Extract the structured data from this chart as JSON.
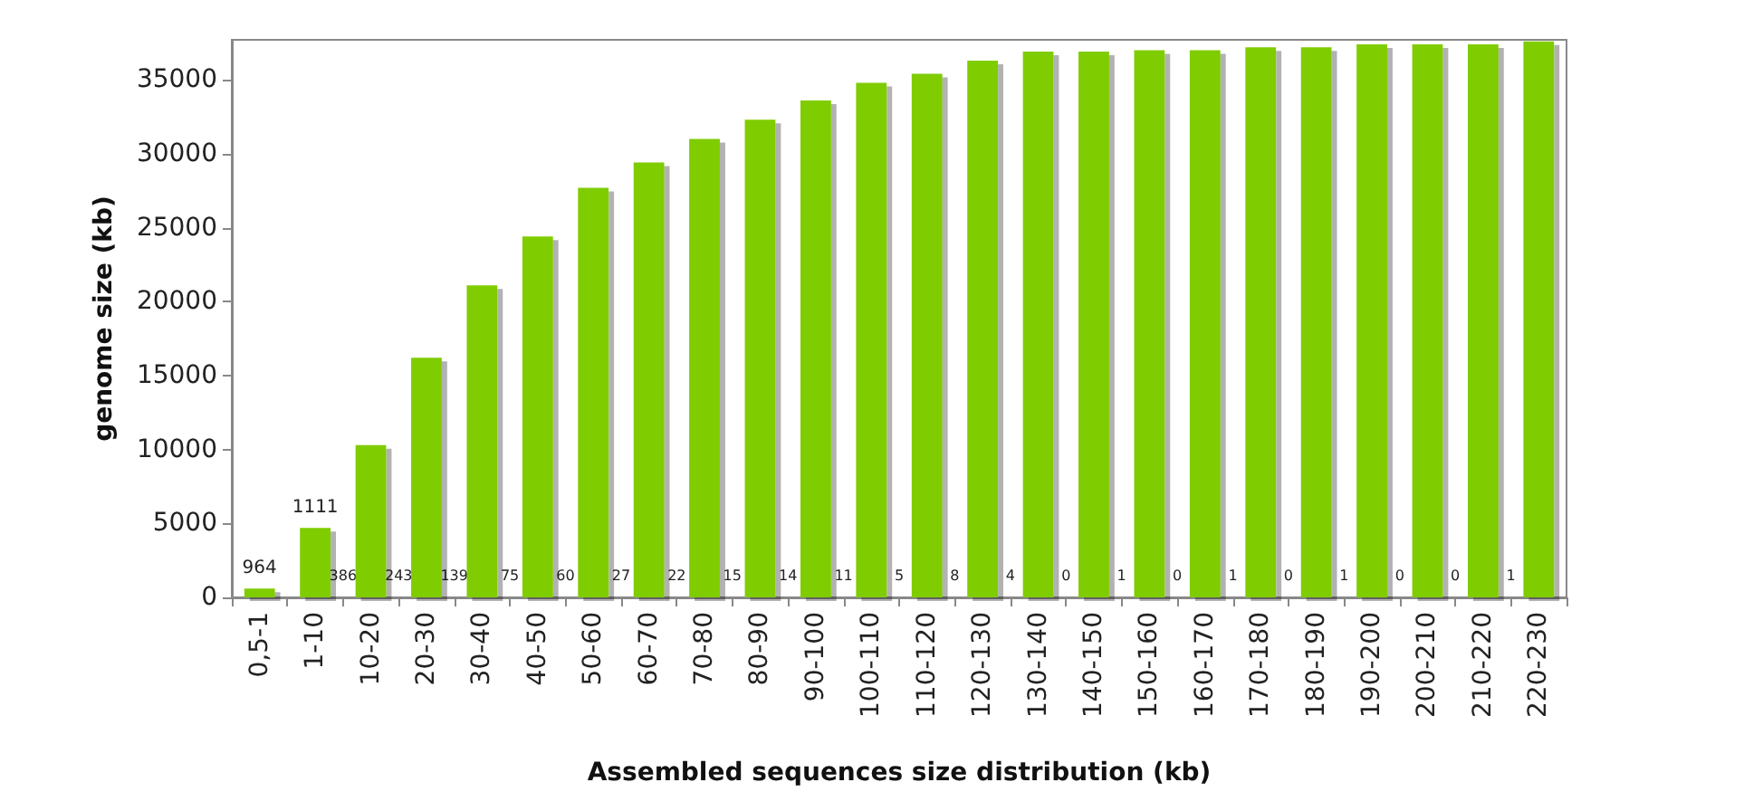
{
  "chart_data": {
    "type": "bar",
    "xlabel": "Assembled sequences size distribution (kb)",
    "ylabel": "genome size (kb)",
    "categories": [
      "0,5-1",
      "1-10",
      "10-20",
      "20-30",
      "30-40",
      "40-50",
      "50-60",
      "60-70",
      "70-80",
      "80-90",
      "90-100",
      "100-110",
      "110-120",
      "120-130",
      "130-140",
      "140-150",
      "150-160",
      "160-170",
      "170-180",
      "180-190",
      "190-200",
      "200-210",
      "210-220",
      "220-230"
    ],
    "values": [
      600,
      4700,
      10300,
      16200,
      21100,
      24400,
      27700,
      29400,
      31000,
      32300,
      33600,
      34800,
      35400,
      36300,
      36900,
      36900,
      37000,
      37000,
      37200,
      37200,
      37400,
      37400,
      37400,
      37600
    ],
    "annotations": [
      "964",
      "1111",
      "386",
      "243",
      "139",
      "75",
      "60",
      "27",
      "22",
      "15",
      "14",
      "11",
      "5",
      "8",
      "4",
      "0",
      "1",
      "0",
      "1",
      "0",
      "1",
      "0",
      "0",
      "1"
    ],
    "color": "#7fcc00",
    "ylim": [
      0,
      37700
    ],
    "yticks": [
      0,
      5000,
      10000,
      15000,
      20000,
      25000,
      30000,
      35000
    ],
    "grid": false
  }
}
